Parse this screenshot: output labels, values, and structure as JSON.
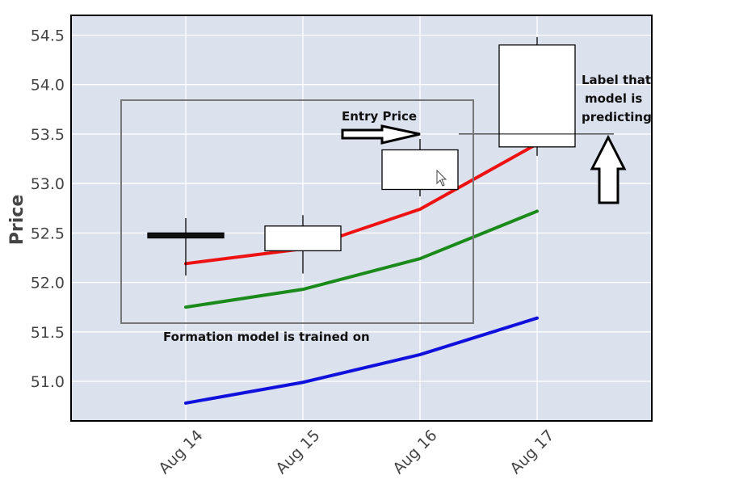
{
  "chart_data": {
    "type": "candlestick",
    "ylabel": "Price",
    "ylim": [
      50.6,
      54.7
    ],
    "y_ticks": [
      "51.0",
      "51.5",
      "52.0",
      "52.5",
      "53.0",
      "53.5",
      "54.0",
      "54.5"
    ],
    "x_ticks": [
      "Aug 14",
      "Aug 15",
      "Aug 16",
      "Aug 17"
    ],
    "grid": true,
    "candles": [
      {
        "date": "Aug 14",
        "open": 52.5,
        "high": 52.65,
        "low": 52.07,
        "close": 52.45,
        "bearish": true
      },
      {
        "date": "Aug 15",
        "open": 52.32,
        "high": 52.68,
        "low": 52.09,
        "close": 52.57,
        "bearish": false
      },
      {
        "date": "Aug 16",
        "open": 52.94,
        "high": 53.45,
        "low": 52.87,
        "close": 53.34,
        "bearish": false
      },
      {
        "date": "Aug 17",
        "open": 53.37,
        "high": 54.48,
        "low": 53.28,
        "close": 54.4,
        "bearish": false
      }
    ],
    "series": [
      {
        "color": "#ee1111",
        "values": [
          52.19,
          52.34,
          52.74,
          53.4
        ]
      },
      {
        "color": "#1a8a1a",
        "values": [
          51.75,
          51.93,
          52.24,
          52.72
        ]
      },
      {
        "color": "#1010dd",
        "values": [
          50.78,
          50.99,
          51.27,
          51.64
        ]
      }
    ],
    "entry_price": 53.5,
    "annotations": {
      "entry": "Entry Price",
      "label_lines": [
        "Label that",
        "model is",
        "predicting"
      ],
      "formation": "Formation model is trained on"
    }
  },
  "colors": {
    "plot_bg": "#dce1ee",
    "grid": "#ffffff",
    "candle_body": "#ffffff",
    "bearish_body": "#111111"
  }
}
